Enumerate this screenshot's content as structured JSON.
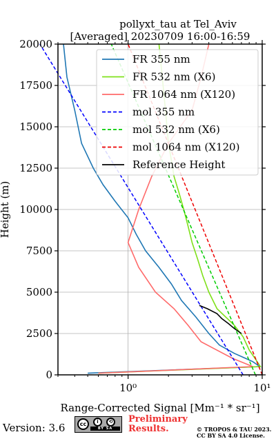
{
  "chart_data": {
    "type": "line",
    "title": "pollyxt_tau at Tel_Aviv",
    "subtitle": "[Averaged] 20230709 16:00-16:59",
    "xlabel": "Range-Corrected Signal [Mm⁻¹ * sr⁻¹]",
    "ylabel": "Height (m)",
    "xscale": "log",
    "xlim": [
      0.3,
      10
    ],
    "ylim": [
      0,
      20000
    ],
    "xticks": [
      1,
      10
    ],
    "xtick_labels": [
      "10⁰",
      "10¹"
    ],
    "yticks": [
      0,
      2500,
      5000,
      7500,
      10000,
      12500,
      15000,
      17500,
      20000
    ],
    "ytick_labels": [
      "0",
      "2500",
      "5000",
      "7500",
      "10000",
      "12500",
      "15000",
      "17500",
      "20000"
    ],
    "grid": true,
    "legend_position": "top-right",
    "series": [
      {
        "name": "FR 355 nm",
        "color": "#1f77b4",
        "style": "solid",
        "height": [
          100,
          500,
          800,
          1000,
          1300,
          1800,
          2500,
          3500,
          4500,
          5500,
          6500,
          7500,
          8500,
          9500,
          10500,
          11500,
          12500,
          14000,
          16000,
          18000,
          20000
        ],
        "value": [
          0.5,
          9.6,
          8.5,
          7.5,
          6.2,
          4.8,
          4.0,
          3.2,
          2.5,
          2.1,
          1.7,
          1.35,
          1.15,
          1.0,
          0.8,
          0.65,
          0.55,
          0.45,
          0.4,
          0.35,
          0.33
        ]
      },
      {
        "name": "FR 532 nm (X6)",
        "color": "#7fe01a",
        "style": "solid",
        "height": [
          100,
          500,
          900,
          1500,
          2300,
          3000,
          4000,
          5000,
          6000,
          7000,
          8000,
          9000,
          10000,
          11000,
          12000,
          13000,
          14000,
          16000,
          18000,
          20000
        ],
        "value": [
          0.6,
          9.7,
          9.0,
          8.0,
          7.2,
          6.2,
          4.6,
          4.0,
          3.6,
          3.3,
          3.0,
          2.8,
          2.6,
          2.4,
          2.2,
          2.1,
          2.0,
          1.9,
          1.8,
          1.7
        ]
      },
      {
        "name": "FR 1064 nm (X120)",
        "color": "#ff6a6a",
        "style": "solid",
        "height": [
          100,
          500,
          1000,
          2000,
          3000,
          4000,
          5000,
          6500,
          8000,
          10000,
          12000,
          14000,
          16000,
          18000,
          20000
        ],
        "value": [
          0.6,
          8.5,
          6.0,
          3.5,
          2.8,
          2.2,
          1.6,
          1.2,
          1.0,
          1.2,
          1.5,
          2.0,
          3.0,
          3.5,
          4.0
        ]
      },
      {
        "name": "mol 355 nm",
        "color": "#0000ff",
        "style": "dashed",
        "height": [
          0,
          20000
        ],
        "value": [
          7.2,
          0.22
        ]
      },
      {
        "name": "mol 532 nm (X6)",
        "color": "#00cc00",
        "style": "dashed",
        "height": [
          0,
          20000
        ],
        "value": [
          8.9,
          0.75
        ]
      },
      {
        "name": "mol 1064 nm (X120)",
        "color": "#ee0000",
        "style": "dashed",
        "height": [
          0,
          20000
        ],
        "value": [
          10.0,
          1.0
        ]
      },
      {
        "name": "Reference Height",
        "color": "#000000",
        "style": "solid",
        "height": [
          2500,
          2800,
          3100,
          3400,
          3700,
          4000,
          4200
        ],
        "value": [
          7.0,
          6.2,
          5.6,
          5.0,
          4.6,
          3.9,
          3.4
        ]
      }
    ]
  },
  "footer": {
    "version": "Version: 3.6",
    "license_badge": "BY SA",
    "preliminary_line1": "Preliminary",
    "preliminary_line2": "Results.",
    "copyright_line1": "© TROPOS & TAU 2023.",
    "copyright_line2": "CC BY SA 4.0 License."
  }
}
